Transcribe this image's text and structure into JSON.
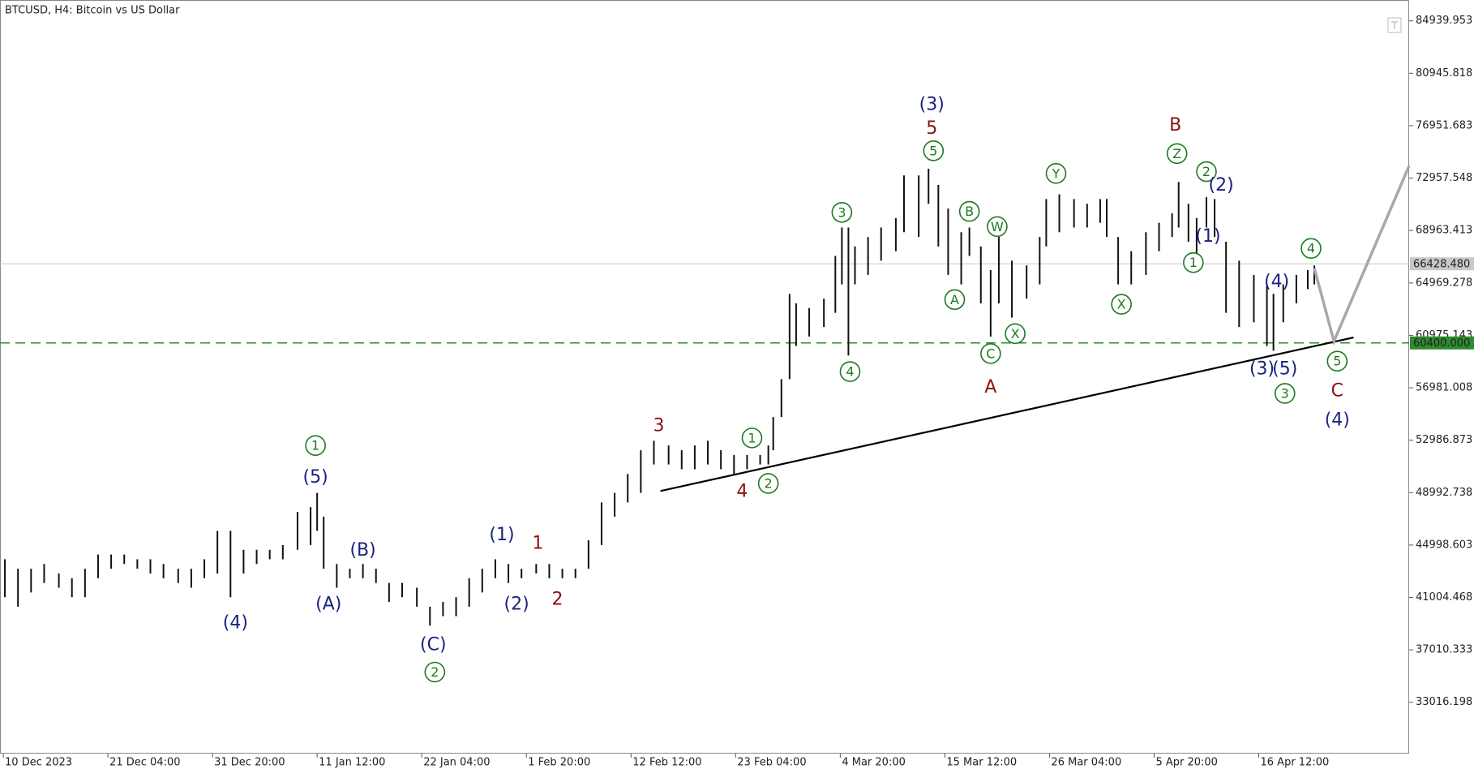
{
  "chart_data": {
    "type": "range_bar",
    "title": "BTCUSD, H4:  Bitcoin vs US Dollar",
    "bar_color": "#111111",
    "xlim": [
      -2,
      860
    ],
    "xticks": [
      {
        "value": 0,
        "label": "10 Dec 2023"
      },
      {
        "value": 64,
        "label": "21 Dec 04:00"
      },
      {
        "value": 128,
        "label": "31 Dec 20:00"
      },
      {
        "value": 192,
        "label": "11 Jan 12:00"
      },
      {
        "value": 256,
        "label": "22 Jan 04:00"
      },
      {
        "value": 320,
        "label": "1 Feb 20:00"
      },
      {
        "value": 384,
        "label": "12 Feb 12:00"
      },
      {
        "value": 448,
        "label": "23 Feb 04:00"
      },
      {
        "value": 512,
        "label": "4 Mar 20:00"
      },
      {
        "value": 576,
        "label": "15 Mar 12:00"
      },
      {
        "value": 640,
        "label": "26 Mar 04:00"
      },
      {
        "value": 704,
        "label": "5 Apr 20:00"
      },
      {
        "value": 768,
        "label": "16 Apr 12:00"
      }
    ],
    "ylim": [
      29106,
      86529
    ],
    "yticks": [
      84939.953,
      80945.818,
      76951.683,
      72957.548,
      68963.413,
      64969.278,
      60975.143,
      56981.008,
      52986.873,
      48992.738,
      44998.603,
      41004.468,
      37010.333,
      33016.198
    ],
    "x": [
      1,
      9,
      17,
      25,
      34,
      42,
      50,
      58,
      66,
      74,
      82,
      90,
      98,
      107,
      115,
      123,
      131,
      139,
      147,
      155,
      163,
      171,
      180,
      188,
      192,
      196,
      204,
      212,
      220,
      228,
      236,
      244,
      253,
      261,
      269,
      277,
      285,
      293,
      301,
      309,
      317,
      326,
      334,
      342,
      350,
      358,
      366,
      374,
      382,
      390,
      398,
      407,
      415,
      423,
      431,
      439,
      447,
      455,
      463,
      468,
      471,
      476,
      481,
      485,
      493,
      502,
      509,
      513,
      517,
      521,
      529,
      537,
      546,
      551,
      560,
      566,
      572,
      578,
      586,
      591,
      598,
      604,
      609,
      617,
      626,
      634,
      638,
      646,
      655,
      663,
      671,
      675,
      682,
      690,
      699,
      707,
      715,
      719,
      725,
      730,
      736,
      741,
      748,
      756,
      765,
      773,
      777,
      783,
      791,
      798,
      802
    ],
    "high": [
      43913,
      43191,
      43191,
      43552,
      42830,
      42469,
      43191,
      44274,
      44274,
      44274,
      43913,
      43913,
      43552,
      43191,
      43191,
      43913,
      46080,
      46080,
      44636,
      44636,
      44636,
      44997,
      47525,
      47886,
      48969,
      47164,
      43552,
      43191,
      43552,
      43191,
      42108,
      42108,
      41746,
      40302,
      40663,
      41024,
      42469,
      43191,
      43913,
      43552,
      43191,
      43552,
      43552,
      43191,
      43191,
      45358,
      48247,
      48969,
      50414,
      52220,
      52942,
      52581,
      52220,
      52581,
      52942,
      52220,
      51859,
      51859,
      51859,
      52581,
      54748,
      57637,
      64138,
      63415,
      63054,
      63777,
      67027,
      69194,
      69194,
      67749,
      68471,
      69194,
      69916,
      73166,
      73166,
      73672,
      72444,
      70638,
      68833,
      69194,
      67749,
      65943,
      68471,
      66666,
      66305,
      68471,
      71361,
      71722,
      71361,
      71000,
      71361,
      71361,
      68471,
      67388,
      68833,
      69555,
      70277,
      72661,
      71000,
      69916,
      71505,
      71361,
      68110,
      66666,
      65582,
      64860,
      64138,
      64860,
      65582,
      65943,
      66305
    ],
    "low": [
      41024,
      40302,
      41385,
      42108,
      41746,
      41024,
      41024,
      42469,
      43191,
      43552,
      43191,
      42830,
      42469,
      42108,
      41746,
      42469,
      42830,
      41024,
      42830,
      43552,
      43913,
      43913,
      44636,
      44997,
      46080,
      43191,
      41746,
      42469,
      42469,
      42108,
      40663,
      41024,
      40302,
      38857,
      39579,
      39579,
      40302,
      41385,
      42469,
      42108,
      42469,
      42830,
      42469,
      42469,
      42469,
      43191,
      44997,
      47164,
      48247,
      48969,
      51136,
      51136,
      50775,
      50775,
      51136,
      50775,
      50414,
      50775,
      51136,
      51136,
      52220,
      54748,
      57637,
      60165,
      60887,
      61610,
      62693,
      64860,
      59443,
      64860,
      65582,
      66666,
      67388,
      68833,
      68471,
      71000,
      67749,
      65582,
      64860,
      67027,
      63415,
      60887,
      63415,
      62332,
      63777,
      64860,
      67749,
      68833,
      69194,
      69194,
      69555,
      68471,
      64860,
      64860,
      65582,
      67388,
      68471,
      69194,
      68110,
      67027,
      69194,
      68471,
      62693,
      61610,
      61971,
      60165,
      59804,
      61971,
      63415,
      64499,
      64860
    ],
    "levels": [
      {
        "value": 66428.48,
        "label": "66428.480",
        "color": "#c8c8c8",
        "style": "solid"
      },
      {
        "value": 60400,
        "label": "60400.000",
        "color": "#2e8b2e",
        "style": "dashed"
      }
    ],
    "trend_line": {
      "color": "#000000",
      "x": [
        402,
        826
      ],
      "y": [
        49114,
        60815
      ]
    },
    "projection": {
      "color": "#a8a8a8",
      "x": [
        802,
        814,
        860
      ],
      "y": [
        66088,
        60527,
        73889
      ]
    },
    "annotations": [
      {
        "color": "#1e7a1e",
        "circled": true,
        "items": [
          {
            "text": "1",
            "x": 191,
            "y": 52581
          },
          {
            "text": "2",
            "x": 264,
            "y": 35318
          },
          {
            "text": "1",
            "x": 458,
            "y": 53159
          },
          {
            "text": "2",
            "x": 468,
            "y": 49692
          },
          {
            "text": "3",
            "x": 513,
            "y": 70349
          },
          {
            "text": "4",
            "x": 518,
            "y": 58215
          },
          {
            "text": "5",
            "x": 569,
            "y": 75044
          },
          {
            "text": "A",
            "x": 582,
            "y": 63704
          },
          {
            "text": "B",
            "x": 591,
            "y": 70422
          },
          {
            "text": "W",
            "x": 608,
            "y": 69266
          },
          {
            "text": "C",
            "x": 604,
            "y": 59587
          },
          {
            "text": "X",
            "x": 619,
            "y": 61104
          },
          {
            "text": "Y",
            "x": 644,
            "y": 73311
          },
          {
            "text": "X",
            "x": 684,
            "y": 63343
          },
          {
            "text": "Z",
            "x": 718,
            "y": 74828
          },
          {
            "text": "2",
            "x": 736,
            "y": 73455
          },
          {
            "text": "1",
            "x": 728,
            "y": 66521
          },
          {
            "text": "4",
            "x": 800,
            "y": 67605
          },
          {
            "text": "3",
            "x": 784,
            "y": 56554
          },
          {
            "text": "5",
            "x": 816,
            "y": 59009
          }
        ]
      },
      {
        "color": "#1a237e",
        "circled": false,
        "items": [
          {
            "text": "(4)",
            "x": 142,
            "y": 39074
          },
          {
            "text": "(5)",
            "x": 191,
            "y": 50197
          },
          {
            "text": "(B)",
            "x": 220,
            "y": 44636
          },
          {
            "text": "(A)",
            "x": 199,
            "y": 40518
          },
          {
            "text": "(C)",
            "x": 263,
            "y": 37413
          },
          {
            "text": "(1)",
            "x": 305,
            "y": 45791
          },
          {
            "text": "(2)",
            "x": 314,
            "y": 40518
          },
          {
            "text": "(3)",
            "x": 568,
            "y": 78584
          },
          {
            "text": "(2)",
            "x": 745,
            "y": 72444
          },
          {
            "text": "(1)",
            "x": 737,
            "y": 68544
          },
          {
            "text": "(4)",
            "x": 779,
            "y": 65077
          },
          {
            "text": "(3)",
            "x": 770,
            "y": 58432
          },
          {
            "text": "(5)",
            "x": 784,
            "y": 58432
          },
          {
            "text": "(4)",
            "x": 816,
            "y": 54531
          }
        ]
      },
      {
        "color": "#8b1010",
        "circled": false,
        "items": [
          {
            "text": "1",
            "x": 327,
            "y": 45141
          },
          {
            "text": "2",
            "x": 339,
            "y": 40880
          },
          {
            "text": "3",
            "x": 401,
            "y": 54098
          },
          {
            "text": "4",
            "x": 452,
            "y": 49114
          },
          {
            "text": "5",
            "x": 568,
            "y": 76778
          },
          {
            "text": "A",
            "x": 604,
            "y": 57059
          },
          {
            "text": "B",
            "x": 717,
            "y": 76995
          },
          {
            "text": "C",
            "x": 816,
            "y": 56770
          }
        ]
      }
    ]
  }
}
